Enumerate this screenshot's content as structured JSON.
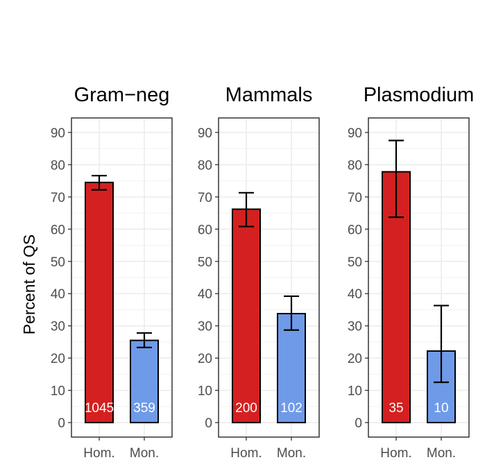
{
  "chart_data": {
    "type": "bar",
    "ylabel": "Percent of QS",
    "ylim": [
      -4.5,
      94.5
    ],
    "yticks": [
      0,
      10,
      20,
      30,
      40,
      50,
      60,
      70,
      80,
      90
    ],
    "categories": [
      "Hom.",
      "Mon."
    ],
    "colors": {
      "Hom.": "#d42020",
      "Mon.": "#6f9ae8"
    },
    "panels": [
      {
        "title": "Gram−neg",
        "bars": [
          {
            "category": "Hom.",
            "value": 74.5,
            "err_low": 72.2,
            "err_high": 76.6,
            "count": "1045"
          },
          {
            "category": "Mon.",
            "value": 25.5,
            "err_low": 23.3,
            "err_high": 27.8,
            "count": "359"
          }
        ]
      },
      {
        "title": "Mammals",
        "bars": [
          {
            "category": "Hom.",
            "value": 66.2,
            "err_low": 60.8,
            "err_high": 71.3,
            "count": "200"
          },
          {
            "category": "Mon.",
            "value": 33.8,
            "err_low": 28.7,
            "err_high": 39.2,
            "count": "102"
          }
        ]
      },
      {
        "title": "Plasmodium",
        "bars": [
          {
            "category": "Hom.",
            "value": 77.8,
            "err_low": 63.7,
            "err_high": 87.5,
            "count": "35"
          },
          {
            "category": "Mon.",
            "value": 22.2,
            "err_low": 12.5,
            "err_high": 36.3,
            "count": "10"
          }
        ]
      }
    ]
  }
}
